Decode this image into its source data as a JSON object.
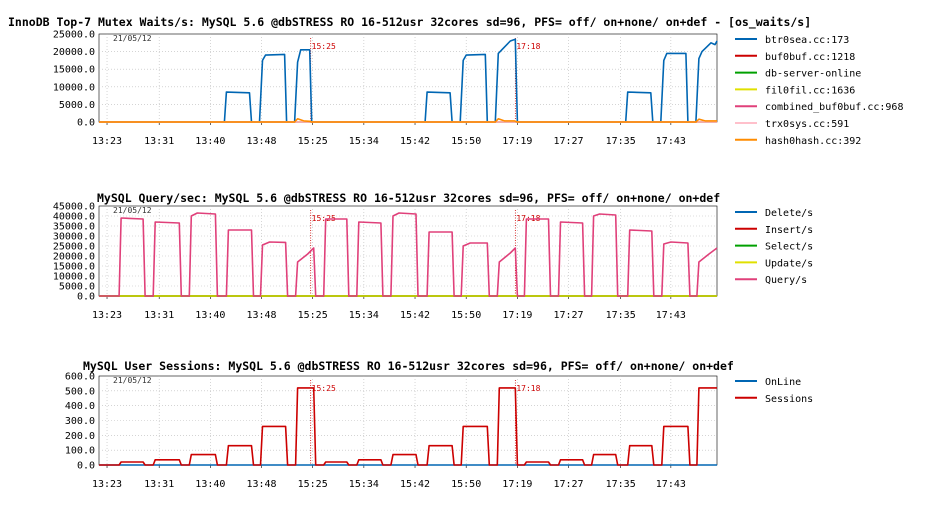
{
  "date_label": "21/05/12",
  "markers": [
    "15:25",
    "17:18"
  ],
  "x_ticks": [
    "13:23",
    "13:31",
    "13:40",
    "13:48",
    "15:25",
    "15:34",
    "15:42",
    "15:50",
    "17:19",
    "17:27",
    "17:35",
    "17:43"
  ],
  "chart_data": [
    {
      "type": "line",
      "title": "InnoDB Top-7 Mutex Waits/s: MySQL 5.6 @dbSTRESS RO 16-512usr 32cores sd=96, PFS= off/ on+none/ on+def - [os_waits/s]",
      "ylim": [
        0,
        25000
      ],
      "y_ticks": [
        "0.0",
        "5000.0",
        "10000.0",
        "15000.0",
        "20000.0",
        "25000.0"
      ],
      "grid": true,
      "legend_position": "right",
      "series": [
        {
          "name": "btr0sea.cc:173",
          "color": "#0066b3",
          "values": [
            [
              0,
              0
            ],
            [
              125,
              0
            ],
            [
              127,
              8500
            ],
            [
              150,
              8300
            ],
            [
              152,
              0
            ],
            [
              160,
              0
            ],
            [
              163,
              17500
            ],
            [
              166,
              19000
            ],
            [
              185,
              19200
            ],
            [
              187,
              0
            ],
            [
              195,
              0
            ],
            [
              198,
              17000
            ],
            [
              201,
              20500
            ],
            [
              210,
              20500
            ],
            [
              212,
              0
            ],
            [
              325,
              0
            ],
            [
              327,
              8500
            ],
            [
              350,
              8300
            ],
            [
              352,
              0
            ],
            [
              360,
              0
            ],
            [
              363,
              17500
            ],
            [
              366,
              19000
            ],
            [
              385,
              19200
            ],
            [
              387,
              0
            ],
            [
              395,
              0
            ],
            [
              398,
              19500
            ],
            [
              410,
              23000
            ],
            [
              415,
              23500
            ],
            [
              417,
              0
            ],
            [
              525,
              0
            ],
            [
              527,
              8500
            ],
            [
              550,
              8300
            ],
            [
              552,
              0
            ],
            [
              560,
              0
            ],
            [
              563,
              17500
            ],
            [
              566,
              19500
            ],
            [
              585,
              19500
            ],
            [
              587,
              0
            ],
            [
              595,
              0
            ],
            [
              598,
              18000
            ],
            [
              601,
              20000
            ],
            [
              610,
              22500
            ],
            [
              614,
              22000
            ],
            [
              616,
              23000
            ]
          ]
        },
        {
          "name": "buf0buf.cc:1218",
          "color": "#cc0000",
          "values": [
            [
              0,
              0
            ],
            [
              616,
              0
            ]
          ]
        },
        {
          "name": "db-server-online",
          "color": "#00a000",
          "values": [
            [
              0,
              0
            ],
            [
              616,
              0
            ]
          ]
        },
        {
          "name": "fil0fil.cc:1636",
          "color": "#e0e000",
          "values": [
            [
              0,
              0
            ],
            [
              616,
              0
            ]
          ]
        },
        {
          "name": "combined_buf0buf.cc:968",
          "color": "#e0407a",
          "values": [
            [
              0,
              0
            ],
            [
              616,
              0
            ]
          ]
        },
        {
          "name": "trx0sys.cc:591",
          "color": "#ffc0cb",
          "values": [
            [
              0,
              0
            ],
            [
              616,
              0
            ]
          ]
        },
        {
          "name": "hash0hash.cc:392",
          "color": "#ff8c00",
          "values": [
            [
              0,
              0
            ],
            [
              195,
              0
            ],
            [
              198,
              900
            ],
            [
              204,
              300
            ],
            [
              210,
              200
            ],
            [
              212,
              0
            ],
            [
              395,
              0
            ],
            [
              398,
              900
            ],
            [
              404,
              300
            ],
            [
              414,
              300
            ],
            [
              417,
              0
            ],
            [
              595,
              0
            ],
            [
              598,
              800
            ],
            [
              604,
              300
            ],
            [
              616,
              300
            ]
          ]
        }
      ]
    },
    {
      "type": "line",
      "title": "MySQL Query/sec: MySQL 5.6 @dbSTRESS RO 16-512usr 32cores sd=96, PFS= off/ on+none/ on+def",
      "ylim": [
        0,
        45000
      ],
      "y_ticks": [
        "0.0",
        "5000.0",
        "10000.0",
        "15000.0",
        "20000.0",
        "25000.0",
        "30000.0",
        "35000.0",
        "40000.0",
        "45000.0"
      ],
      "grid": true,
      "legend_position": "right",
      "series": [
        {
          "name": "Delete/s",
          "color": "#0066b3",
          "values": [
            [
              0,
              0
            ],
            [
              616,
              0
            ]
          ]
        },
        {
          "name": "Insert/s",
          "color": "#cc0000",
          "values": [
            [
              0,
              0
            ],
            [
              616,
              0
            ]
          ]
        },
        {
          "name": "Select/s",
          "color": "#00a000",
          "values": [
            [
              0,
              0
            ],
            [
              616,
              0
            ]
          ]
        },
        {
          "name": "Update/s",
          "color": "#e0e000",
          "values": [
            [
              0,
              0
            ],
            [
              616,
              0
            ]
          ]
        },
        {
          "name": "Query/s",
          "color": "#e0407a",
          "values": [
            [
              0,
              0
            ],
            [
              20,
              0
            ],
            [
              22,
              39000
            ],
            [
              44,
              38500
            ],
            [
              46,
              0
            ],
            [
              54,
              0
            ],
            [
              56,
              37000
            ],
            [
              80,
              36500
            ],
            [
              82,
              0
            ],
            [
              90,
              0
            ],
            [
              92,
              40000
            ],
            [
              98,
              41500
            ],
            [
              116,
              41000
            ],
            [
              118,
              0
            ],
            [
              127,
              0
            ],
            [
              129,
              33000
            ],
            [
              152,
              33000
            ],
            [
              154,
              0
            ],
            [
              161,
              0
            ],
            [
              163,
              25500
            ],
            [
              170,
              27000
            ],
            [
              186,
              26800
            ],
            [
              188,
              0
            ],
            [
              196,
              0
            ],
            [
              198,
              17000
            ],
            [
              208,
              21000
            ],
            [
              214,
              24000
            ],
            [
              216,
              0
            ],
            [
              224,
              0
            ],
            [
              226,
              38500
            ],
            [
              247,
              38500
            ],
            [
              249,
              0
            ],
            [
              257,
              0
            ],
            [
              259,
              37000
            ],
            [
              281,
              36500
            ],
            [
              283,
              0
            ],
            [
              291,
              0
            ],
            [
              293,
              40000
            ],
            [
              299,
              41500
            ],
            [
              316,
              41000
            ],
            [
              318,
              0
            ],
            [
              327,
              0
            ],
            [
              329,
              32000
            ],
            [
              352,
              32000
            ],
            [
              354,
              0
            ],
            [
              361,
              0
            ],
            [
              363,
              25000
            ],
            [
              370,
              26500
            ],
            [
              387,
              26500
            ],
            [
              389,
              0
            ],
            [
              397,
              0
            ],
            [
              399,
              17000
            ],
            [
              410,
              21500
            ],
            [
              415,
              24000
            ],
            [
              417,
              0
            ],
            [
              424,
              0
            ],
            [
              426,
              38500
            ],
            [
              448,
              38500
            ],
            [
              450,
              0
            ],
            [
              458,
              0
            ],
            [
              460,
              37000
            ],
            [
              482,
              36500
            ],
            [
              484,
              0
            ],
            [
              491,
              0
            ],
            [
              493,
              40000
            ],
            [
              499,
              41000
            ],
            [
              515,
              40500
            ],
            [
              517,
              0
            ],
            [
              527,
              0
            ],
            [
              529,
              33000
            ],
            [
              551,
              32500
            ],
            [
              553,
              0
            ],
            [
              561,
              0
            ],
            [
              563,
              26000
            ],
            [
              570,
              27000
            ],
            [
              587,
              26500
            ],
            [
              589,
              0
            ],
            [
              596,
              0
            ],
            [
              598,
              17000
            ],
            [
              608,
              21000
            ],
            [
              616,
              24000
            ]
          ]
        }
      ]
    },
    {
      "type": "line",
      "title": "MySQL User Sessions: MySQL 5.6 @dbSTRESS RO 16-512usr 32cores sd=96, PFS= off/ on+none/ on+def",
      "ylim": [
        0,
        600
      ],
      "y_ticks": [
        "0.0",
        "100.0",
        "200.0",
        "300.0",
        "400.0",
        "500.0",
        "600.0"
      ],
      "grid": true,
      "legend_position": "right",
      "series": [
        {
          "name": "OnLine",
          "color": "#0066b3",
          "values": [
            [
              0,
              0
            ],
            [
              616,
              0
            ]
          ]
        },
        {
          "name": "Sessions",
          "color": "#cc0000",
          "values": [
            [
              0,
              0
            ],
            [
              20,
              0
            ],
            [
              22,
              20
            ],
            [
              44,
              20
            ],
            [
              46,
              0
            ],
            [
              54,
              0
            ],
            [
              56,
              35
            ],
            [
              80,
              35
            ],
            [
              82,
              0
            ],
            [
              90,
              0
            ],
            [
              92,
              70
            ],
            [
              116,
              70
            ],
            [
              118,
              0
            ],
            [
              127,
              0
            ],
            [
              129,
              130
            ],
            [
              152,
              130
            ],
            [
              154,
              0
            ],
            [
              161,
              0
            ],
            [
              163,
              260
            ],
            [
              186,
              260
            ],
            [
              188,
              0
            ],
            [
              196,
              0
            ],
            [
              198,
              520
            ],
            [
              214,
              520
            ],
            [
              216,
              0
            ],
            [
              224,
              0
            ],
            [
              226,
              20
            ],
            [
              247,
              20
            ],
            [
              249,
              0
            ],
            [
              257,
              0
            ],
            [
              259,
              35
            ],
            [
              281,
              35
            ],
            [
              283,
              0
            ],
            [
              291,
              0
            ],
            [
              293,
              70
            ],
            [
              316,
              70
            ],
            [
              318,
              0
            ],
            [
              327,
              0
            ],
            [
              329,
              130
            ],
            [
              352,
              130
            ],
            [
              354,
              0
            ],
            [
              361,
              0
            ],
            [
              363,
              260
            ],
            [
              387,
              260
            ],
            [
              389,
              0
            ],
            [
              397,
              0
            ],
            [
              399,
              520
            ],
            [
              415,
              520
            ],
            [
              417,
              0
            ],
            [
              424,
              0
            ],
            [
              426,
              20
            ],
            [
              448,
              20
            ],
            [
              450,
              0
            ],
            [
              458,
              0
            ],
            [
              460,
              35
            ],
            [
              482,
              35
            ],
            [
              484,
              0
            ],
            [
              491,
              0
            ],
            [
              493,
              70
            ],
            [
              515,
              70
            ],
            [
              517,
              0
            ],
            [
              527,
              0
            ],
            [
              529,
              130
            ],
            [
              551,
              130
            ],
            [
              553,
              0
            ],
            [
              561,
              0
            ],
            [
              563,
              260
            ],
            [
              587,
              260
            ],
            [
              589,
              0
            ],
            [
              596,
              0
            ],
            [
              598,
              520
            ],
            [
              616,
              520
            ]
          ]
        }
      ]
    }
  ]
}
